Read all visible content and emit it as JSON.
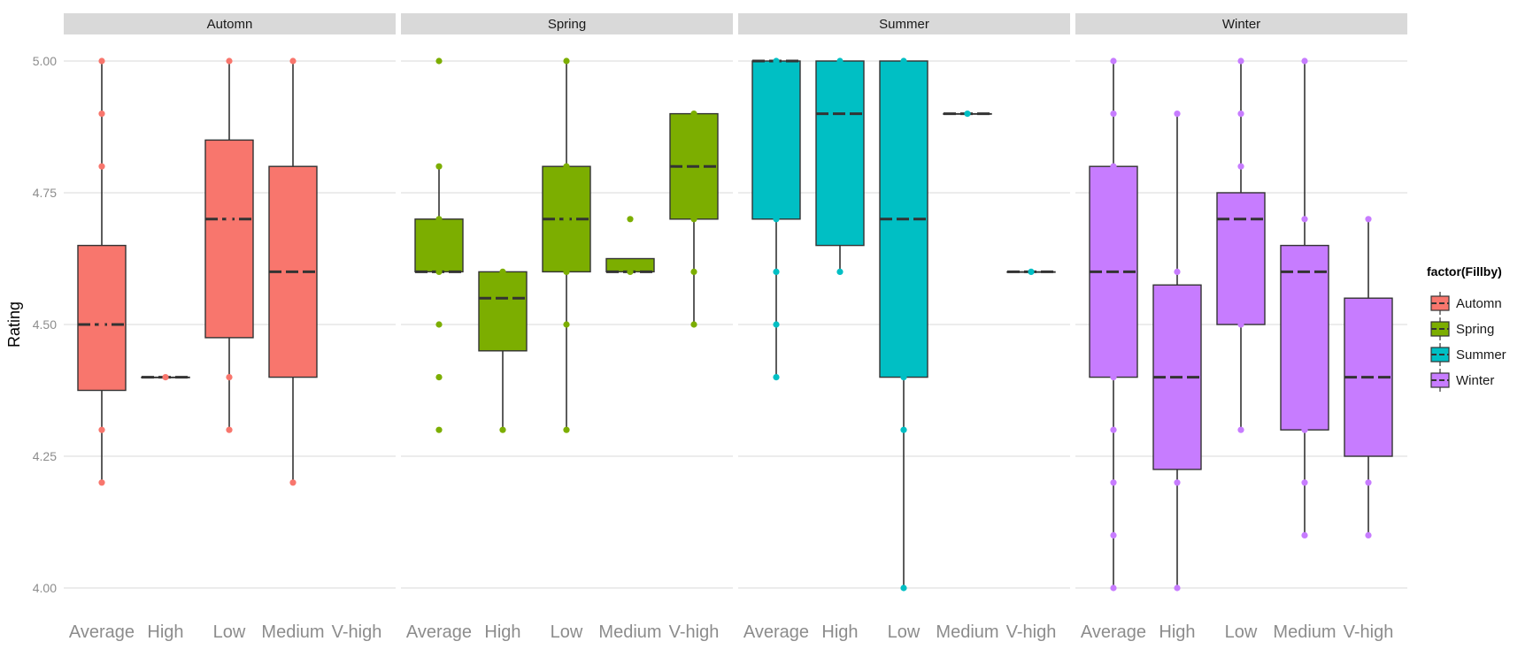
{
  "chart_data": {
    "type": "boxplot",
    "facet_by": "season",
    "ylabel": "Rating",
    "xlabel": "",
    "ylim": [
      4.0,
      5.0
    ],
    "yticks": [
      4.0,
      4.25,
      4.5,
      4.75,
      5.0
    ],
    "ytick_labels": [
      "4.00",
      "4.25",
      "4.50",
      "4.75",
      "5.00"
    ],
    "categories": [
      "Average",
      "High",
      "Low",
      "Medium",
      "V-high"
    ],
    "legend": {
      "title": "factor(Fillby)",
      "position": "right",
      "entries": [
        {
          "label": "Automn",
          "color": "#F8766D"
        },
        {
          "label": "Spring",
          "color": "#7CAE00"
        },
        {
          "label": "Summer",
          "color": "#00BFC4"
        },
        {
          "label": "Winter",
          "color": "#C77CFF"
        }
      ]
    },
    "colors": {
      "strip_bg": "#D9D9D9",
      "grid": "#E5E5E5",
      "box_line": "#333333",
      "axis_text": "#8C8C8C"
    },
    "panels": [
      {
        "title": "Automn",
        "color": "#F8766D",
        "boxes": [
          {
            "category": "Average",
            "q1": 4.375,
            "median": 4.5,
            "q3": 4.65,
            "wlo": 4.2,
            "whi": 5.0,
            "points": [
              5.0,
              4.9,
              4.8,
              4.5,
              4.3,
              4.2
            ]
          },
          {
            "category": "High",
            "q1": 4.4,
            "median": 4.4,
            "q3": 4.4,
            "wlo": 4.4,
            "whi": 4.4,
            "points": [
              4.4
            ]
          },
          {
            "category": "Low",
            "q1": 4.475,
            "median": 4.7,
            "q3": 4.85,
            "wlo": 4.3,
            "whi": 5.0,
            "points": [
              5.0,
              4.7,
              4.4,
              4.3
            ]
          },
          {
            "category": "Medium",
            "q1": 4.4,
            "median": 4.6,
            "q3": 4.8,
            "wlo": 4.2,
            "whi": 5.0,
            "points": [
              5.0,
              4.2
            ]
          }
        ]
      },
      {
        "title": "Spring",
        "color": "#7CAE00",
        "boxes": [
          {
            "category": "Average",
            "q1": 4.6,
            "median": 4.6,
            "q3": 4.7,
            "wlo": 4.6,
            "whi": 4.8,
            "points": [
              5.0,
              4.8,
              4.7,
              4.6,
              4.5,
              4.4,
              4.3
            ]
          },
          {
            "category": "High",
            "q1": 4.45,
            "median": 4.55,
            "q3": 4.6,
            "wlo": 4.3,
            "whi": 4.6,
            "points": [
              4.6,
              4.3
            ]
          },
          {
            "category": "Low",
            "q1": 4.6,
            "median": 4.7,
            "q3": 4.8,
            "wlo": 4.3,
            "whi": 5.0,
            "points": [
              5.0,
              4.8,
              4.7,
              4.6,
              4.5,
              4.3
            ]
          },
          {
            "category": "Medium",
            "q1": 4.6,
            "median": 4.6,
            "q3": 4.625,
            "wlo": 4.6,
            "whi": 4.6,
            "points": [
              4.7,
              4.6
            ]
          },
          {
            "category": "V-high",
            "q1": 4.7,
            "median": 4.8,
            "q3": 4.9,
            "wlo": 4.5,
            "whi": 4.9,
            "points": [
              4.9,
              4.7,
              4.6,
              4.5
            ]
          }
        ]
      },
      {
        "title": "Summer",
        "color": "#00BFC4",
        "boxes": [
          {
            "category": "Average",
            "q1": 4.7,
            "median": 5.0,
            "q3": 5.0,
            "wlo": 4.4,
            "whi": 5.0,
            "points": [
              5.0,
              4.7,
              4.6,
              4.5,
              4.4
            ]
          },
          {
            "category": "High",
            "q1": 4.65,
            "median": 4.9,
            "q3": 5.0,
            "wlo": 4.6,
            "whi": 5.0,
            "points": [
              5.0,
              4.6
            ]
          },
          {
            "category": "Low",
            "q1": 4.4,
            "median": 4.7,
            "q3": 5.0,
            "wlo": 4.0,
            "whi": 5.0,
            "points": [
              5.0,
              4.4,
              4.3,
              4.0
            ]
          },
          {
            "category": "Medium",
            "q1": 4.9,
            "median": 4.9,
            "q3": 4.9,
            "wlo": 4.9,
            "whi": 4.9,
            "points": [
              4.9
            ]
          },
          {
            "category": "V-high",
            "q1": 4.6,
            "median": 4.6,
            "q3": 4.6,
            "wlo": 4.6,
            "whi": 4.6,
            "points": [
              4.6
            ]
          }
        ]
      },
      {
        "title": "Winter",
        "color": "#C77CFF",
        "boxes": [
          {
            "category": "Average",
            "q1": 4.4,
            "median": 4.6,
            "q3": 4.8,
            "wlo": 4.0,
            "whi": 5.0,
            "points": [
              5.0,
              4.9,
              4.8,
              4.4,
              4.3,
              4.2,
              4.1,
              4.0
            ]
          },
          {
            "category": "High",
            "q1": 4.225,
            "median": 4.4,
            "q3": 4.575,
            "wlo": 4.0,
            "whi": 4.9,
            "points": [
              4.9,
              4.6,
              4.2,
              4.0
            ]
          },
          {
            "category": "Low",
            "q1": 4.5,
            "median": 4.7,
            "q3": 4.75,
            "wlo": 4.3,
            "whi": 5.0,
            "points": [
              5.0,
              4.9,
              4.8,
              4.5,
              4.3
            ]
          },
          {
            "category": "Medium",
            "q1": 4.3,
            "median": 4.6,
            "q3": 4.65,
            "wlo": 4.1,
            "whi": 5.0,
            "points": [
              5.0,
              4.7,
              4.3,
              4.2,
              4.1
            ]
          },
          {
            "category": "V-high",
            "q1": 4.25,
            "median": 4.4,
            "q3": 4.55,
            "wlo": 4.1,
            "whi": 4.7,
            "points": [
              4.7,
              4.2,
              4.1
            ]
          }
        ]
      }
    ]
  }
}
